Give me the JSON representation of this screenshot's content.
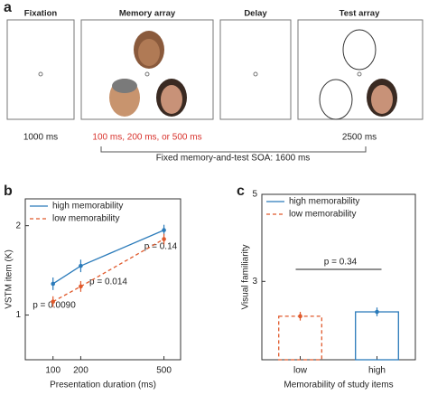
{
  "diagram": {
    "label": "a",
    "frames": [
      {
        "title": "Fixation",
        "duration": "1000 ms"
      },
      {
        "title": "Memory array",
        "duration": "100 ms, 200 ms, or 500 ms"
      },
      {
        "title": "Delay"
      },
      {
        "title": "Test array",
        "duration": "2500 ms"
      }
    ],
    "soa": "Fixed memory-and-test SOA: 1600 ms"
  },
  "chart_data": [
    {
      "type": "line",
      "label": "b",
      "x": [
        100,
        200,
        500
      ],
      "xlim": [
        0,
        560
      ],
      "xticks": [
        100,
        200,
        500
      ],
      "ylim": [
        0.5,
        2.3
      ],
      "yticks": [
        1,
        2
      ],
      "xlabel": "Presentation duration (ms)",
      "ylabel": "VSTM item (K)",
      "legend": "upper left",
      "series": [
        {
          "name": "high memorability",
          "color": "#2b7bba",
          "style": "solid",
          "values": [
            1.35,
            1.55,
            1.95
          ],
          "errors": [
            0.07,
            0.07,
            0.06
          ]
        },
        {
          "name": "low memorability",
          "color": "#e0592b",
          "style": "dashed",
          "values": [
            1.15,
            1.32,
            1.85
          ],
          "errors": [
            0.06,
            0.06,
            0.06
          ]
        }
      ],
      "annotations": [
        "p = 0.0090",
        "p = 0.014",
        "p = 0.14"
      ]
    },
    {
      "type": "bar",
      "label": "c",
      "categories": [
        "low",
        "high"
      ],
      "ylim": [
        1.2,
        5
      ],
      "yticks": [
        3,
        5
      ],
      "xlabel": "Memorability of study items",
      "ylabel": "Visual familiarity",
      "legend": "upper left",
      "series": [
        {
          "name": "high memorability",
          "color": "#2b7bba",
          "style": "solid",
          "values": [
            null,
            2.3
          ],
          "errors": [
            null,
            0.1
          ]
        },
        {
          "name": "low memorability",
          "color": "#e0592b",
          "style": "dashed",
          "values": [
            2.2,
            null
          ],
          "errors": [
            0.1,
            null
          ]
        }
      ],
      "annotations": [
        "p = 0.34"
      ]
    }
  ]
}
